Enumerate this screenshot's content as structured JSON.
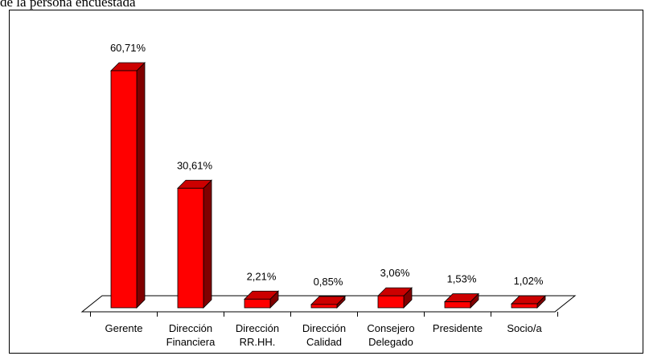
{
  "caption": "de la persona encuestada",
  "chart_data": {
    "type": "bar",
    "style": "3d",
    "categories": [
      [
        "Gerente"
      ],
      [
        "Dirección",
        "Financiera"
      ],
      [
        "Dirección",
        "RR.HH."
      ],
      [
        "Dirección",
        "Calidad"
      ],
      [
        "Consejero",
        "Delegado"
      ],
      [
        "Presidente"
      ],
      [
        "Socio/a"
      ]
    ],
    "values": [
      60.71,
      30.61,
      2.21,
      0.85,
      3.06,
      1.53,
      1.02
    ],
    "value_labels": [
      "60,71%",
      "30,61%",
      "2,21%",
      "0,85%",
      "3,06%",
      "1,53%",
      "1,02%"
    ],
    "bar_color": "#ff0000",
    "bar_top_color": "#cc0000",
    "bar_side_color": "#800000",
    "grid": false,
    "legend": "none"
  }
}
